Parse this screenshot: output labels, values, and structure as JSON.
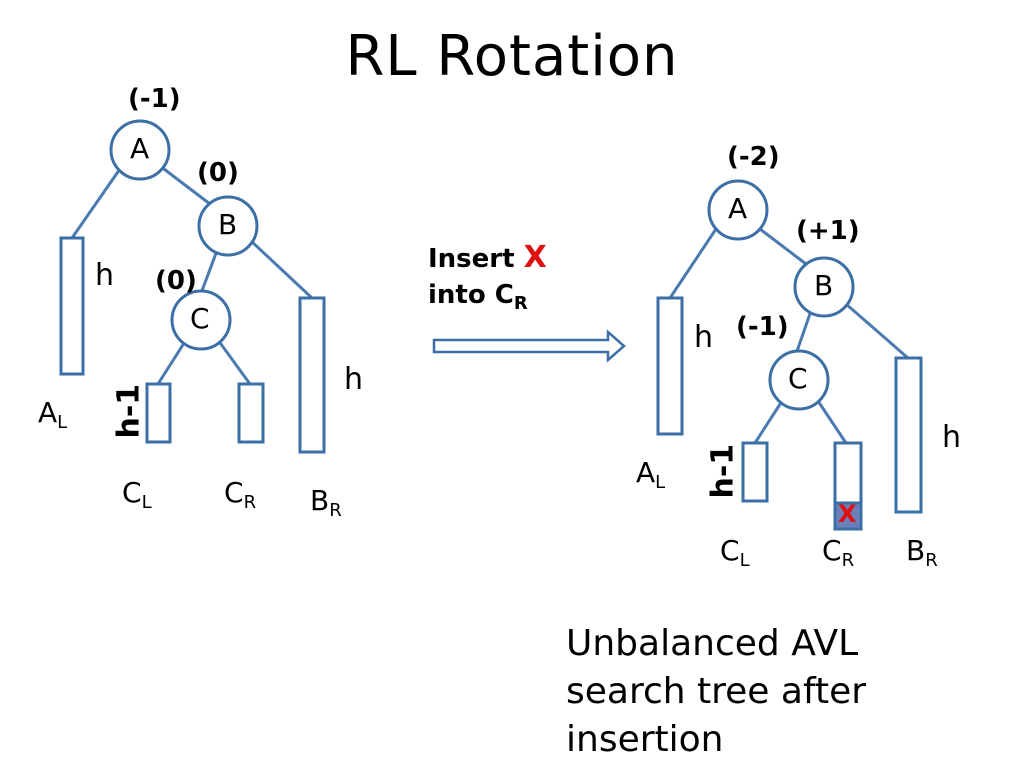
{
  "title": "RL  Rotation",
  "before": {
    "balance_a": "(-1)",
    "balance_b": "(0)",
    "balance_c": "(0)",
    "node_a": "A",
    "node_b": "B",
    "node_c": "C",
    "height_al": "h",
    "height_br": "h",
    "height_c": "h-1",
    "sub_al_main": "A",
    "sub_al": "L",
    "sub_cl_main": "C",
    "sub_cl": "L",
    "sub_cr_main": "C",
    "sub_cr": "R",
    "sub_br_main": "B",
    "sub_br": "R"
  },
  "insert_text": {
    "line1": "Insert",
    "mark": "X",
    "line2": "into C",
    "sub": "R"
  },
  "after": {
    "balance_a": "(-2)",
    "balance_b": "(+1)",
    "balance_c": "(-1)",
    "node_a": "A",
    "node_b": "B",
    "node_c": "C",
    "height_al": "h",
    "height_br": "h",
    "height_c": "h-1",
    "inserted_mark": "X",
    "sub_al_main": "A",
    "sub_al": "L",
    "sub_cl_main": "C",
    "sub_cl": "L",
    "sub_cr_main": "C",
    "sub_cr": "R",
    "sub_br_main": "B",
    "sub_br": "R"
  },
  "caption": {
    "line1": "Unbalanced AVL",
    "line2": "search tree after",
    "line3": "insertion"
  },
  "colors": {
    "edge": "#4a7ab0",
    "node_stroke": "#3b6fa6",
    "insert_fill": "#6b7fb8",
    "mark": "#e01010"
  }
}
